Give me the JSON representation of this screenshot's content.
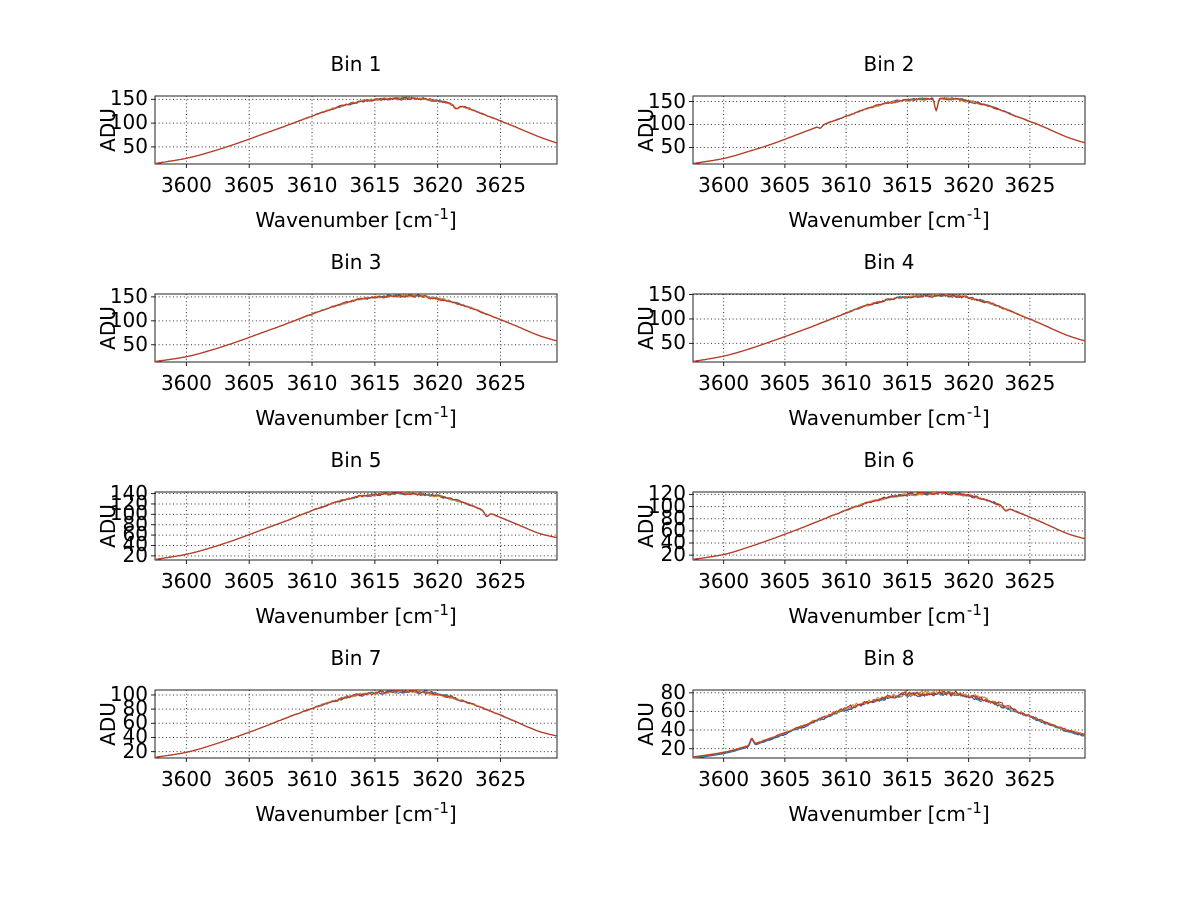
{
  "figure": {
    "background": "#ffffff",
    "ylabel": "ADU",
    "xlabel": {
      "base": "Wavenumber [cm",
      "sup": "-1",
      "end": "]"
    },
    "axis_color": "#222222",
    "grid_color": "#333333",
    "grid_style": "dotted",
    "text_color": "#000000"
  },
  "chart_config": {
    "xlim": [
      3597.5,
      3629.5
    ],
    "xticks": [
      3600,
      3605,
      3610,
      3615,
      3620,
      3625
    ],
    "x_control": [
      3597.5,
      3600,
      3602,
      3604,
      3606,
      3608,
      3610,
      3612,
      3614,
      3616,
      3618,
      3620,
      3622,
      3624,
      3626,
      3628,
      3629.5
    ],
    "series_palette": [
      {
        "name": "spectrum-line-blue",
        "color": "#3340a6",
        "seed": 11,
        "amp_scale": 0.9
      },
      {
        "name": "spectrum-line-teal",
        "color": "#2e8f8f",
        "seed": 23,
        "amp_scale": 0.85
      },
      {
        "name": "spectrum-line-orange",
        "color": "#d98a2b",
        "seed": 37,
        "amp_scale": 1.0
      },
      {
        "name": "spectrum-line-red",
        "color": "#bf3526",
        "seed": 53,
        "amp_scale": 1.05
      }
    ]
  },
  "chart_data": [
    {
      "type": "line",
      "title": "Bin 1",
      "xlabel": "Wavenumber [cm-1]",
      "ylabel": "ADU",
      "ylim": [
        14,
        157
      ],
      "yticks": [
        50,
        100,
        150
      ],
      "grid": true,
      "envelope": [
        15,
        26,
        40,
        57,
        76,
        95,
        115,
        133,
        146,
        151,
        152,
        147,
        135,
        115,
        94,
        72,
        58
      ],
      "annotations": [
        {
          "x": 3621.5,
          "depth": 8,
          "width": 0.3
        }
      ],
      "noise_amp": 2.2,
      "noise_exp": 3.0,
      "series_offsets": [
        0,
        0,
        0,
        0
      ]
    },
    {
      "type": "line",
      "title": "Bin 2",
      "xlabel": "Wavenumber [cm-1]",
      "ylabel": "ADU",
      "ylim": [
        14,
        162
      ],
      "yticks": [
        50,
        100,
        150
      ],
      "grid": true,
      "envelope": [
        15,
        26,
        41,
        58,
        78,
        98,
        118,
        137,
        150,
        155,
        157,
        151,
        137,
        117,
        96,
        73,
        60
      ],
      "annotations": [
        {
          "x": 3607.9,
          "depth": 5,
          "width": 0.18
        },
        {
          "x": 3617.35,
          "depth": 26,
          "width": 0.17
        }
      ],
      "noise_amp": 2.4,
      "noise_exp": 3.0,
      "series_offsets": [
        0,
        0,
        0,
        0
      ]
    },
    {
      "type": "line",
      "title": "Bin 3",
      "xlabel": "Wavenumber [cm-1]",
      "ylabel": "ADU",
      "ylim": [
        14,
        156
      ],
      "yticks": [
        50,
        100,
        150
      ],
      "grid": true,
      "envelope": [
        15,
        25,
        39,
        56,
        75,
        94,
        114,
        132,
        146,
        151,
        152,
        146,
        133,
        113,
        92,
        70,
        58
      ],
      "annotations": [],
      "noise_amp": 2.2,
      "noise_exp": 3.0,
      "series_offsets": [
        0,
        0,
        0,
        0
      ]
    },
    {
      "type": "line",
      "title": "Bin 4",
      "xlabel": "Wavenumber [cm-1]",
      "ylabel": "ADU",
      "ylim": [
        12,
        151
      ],
      "yticks": [
        50,
        100,
        150
      ],
      "grid": true,
      "envelope": [
        13,
        24,
        38,
        55,
        73,
        92,
        112,
        130,
        142,
        147,
        148,
        143,
        130,
        110,
        89,
        67,
        55
      ],
      "annotations": [],
      "noise_amp": 2.6,
      "noise_exp": 3.0,
      "series_offsets": [
        0,
        0,
        0,
        0
      ]
    },
    {
      "type": "line",
      "title": "Bin 5",
      "xlabel": "Wavenumber [cm-1]",
      "ylabel": "ADU",
      "ylim": [
        12,
        143
      ],
      "yticks": [
        20,
        40,
        60,
        80,
        100,
        120,
        140
      ],
      "grid": true,
      "envelope": [
        13,
        23,
        36,
        52,
        70,
        88,
        107,
        124,
        135,
        139,
        140,
        135,
        123,
        104,
        84,
        64,
        55
      ],
      "annotations": [
        {
          "x": 3623.9,
          "depth": 9,
          "width": 0.22
        }
      ],
      "noise_amp": 2.0,
      "noise_exp": 3.0,
      "series_offsets": [
        0,
        0,
        0,
        0
      ]
    },
    {
      "type": "line",
      "title": "Bin 6",
      "xlabel": "Wavenumber [cm-1]",
      "ylabel": "ADU",
      "ylim": [
        12,
        124
      ],
      "yticks": [
        20,
        40,
        60,
        80,
        100,
        120
      ],
      "grid": true,
      "envelope": [
        13,
        21,
        33,
        47,
        62,
        78,
        94,
        108,
        117,
        121,
        122,
        118,
        107,
        91,
        74,
        56,
        47
      ],
      "annotations": [
        {
          "x": 3623.0,
          "depth": 6,
          "width": 0.25
        }
      ],
      "noise_amp": 2.0,
      "noise_exp": 3.0,
      "series_offsets": [
        0,
        0,
        0,
        0
      ]
    },
    {
      "type": "line",
      "title": "Bin 7",
      "xlabel": "Wavenumber [cm-1]",
      "ylabel": "ADU",
      "ylim": [
        11,
        107
      ],
      "yticks": [
        20,
        40,
        60,
        80,
        100
      ],
      "grid": true,
      "envelope": [
        12,
        19,
        29,
        41,
        54,
        68,
        81,
        93,
        101,
        104,
        105,
        101,
        92,
        79,
        64,
        49,
        42
      ],
      "annotations": [],
      "noise_amp": 2.0,
      "noise_exp": 3.0,
      "series_offsets": [
        0,
        0,
        0,
        0
      ]
    },
    {
      "type": "line",
      "title": "Bin 8",
      "xlabel": "Wavenumber [cm-1]",
      "ylabel": "ADU",
      "ylim": [
        10,
        83
      ],
      "yticks": [
        20,
        40,
        60,
        80
      ],
      "grid": true,
      "envelope": [
        11,
        16,
        23,
        32,
        42,
        53,
        63,
        71,
        77,
        79,
        80,
        77,
        70,
        60,
        50,
        40,
        35
      ],
      "annotations": [
        {
          "x": 3602.3,
          "depth": -7,
          "width": 0.18
        }
      ],
      "noise_amp": 2.2,
      "noise_exp": 1.3,
      "series_offsets": [
        -1.3,
        -0.8,
        0.4,
        0
      ]
    }
  ]
}
